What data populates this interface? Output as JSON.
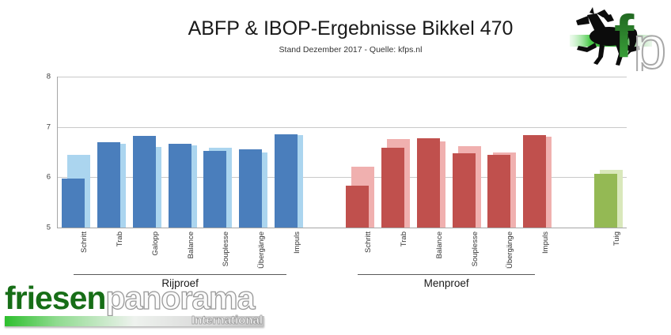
{
  "chart_data": {
    "type": "bar",
    "title": "ABFP & IBOP-Ergebnisse Bikkel 470",
    "subtitle": "Stand Dezember 2017 - Quelle: kfps.nl",
    "ylim": [
      5,
      8
    ],
    "yticks": [
      5,
      6,
      7,
      8
    ],
    "grid": "horizontal",
    "legend": "none",
    "groups": [
      {
        "name": "Rijproef",
        "colors": {
          "front": "#4a7ebc",
          "back": "#abd5ef"
        },
        "categories": [
          "Schritt",
          "Trab",
          "Galopp",
          "Balance",
          "Souplesse",
          "Übergänge",
          "Impuls"
        ],
        "series": [
          {
            "name": "front",
            "values": [
              5.97,
              6.7,
              6.82,
              6.67,
              6.52,
              6.55,
              6.86
            ]
          },
          {
            "name": "back",
            "values": [
              6.45,
              6.66,
              6.6,
              6.63,
              6.59,
              6.49,
              6.84
            ]
          }
        ]
      },
      {
        "name": "Menproef",
        "colors": {
          "front": "#c0504d",
          "back": "#f0b0af"
        },
        "categories": [
          "Schritt",
          "Trab",
          "Balance",
          "Souplesse",
          "Übergänge",
          "Impuls"
        ],
        "series": [
          {
            "name": "front",
            "values": [
              5.83,
              6.59,
              6.78,
              6.47,
              6.45,
              6.83
            ]
          },
          {
            "name": "back",
            "values": [
              6.21,
              6.76,
              6.71,
              6.61,
              6.49,
              6.81
            ]
          }
        ]
      },
      {
        "name": "",
        "colors": {
          "front": "#94b954",
          "back": "#d9e8bb"
        },
        "categories": [
          "Tuig"
        ],
        "series": [
          {
            "name": "front",
            "values": [
              6.07
            ]
          },
          {
            "name": "back",
            "values": [
              6.14
            ]
          }
        ]
      }
    ]
  },
  "logos": {
    "fp": {
      "letter_f": "f",
      "letter_p": "p"
    },
    "friesenpanorama": {
      "part1": "friesen",
      "part2": "panorama",
      "tagline": "International"
    }
  }
}
